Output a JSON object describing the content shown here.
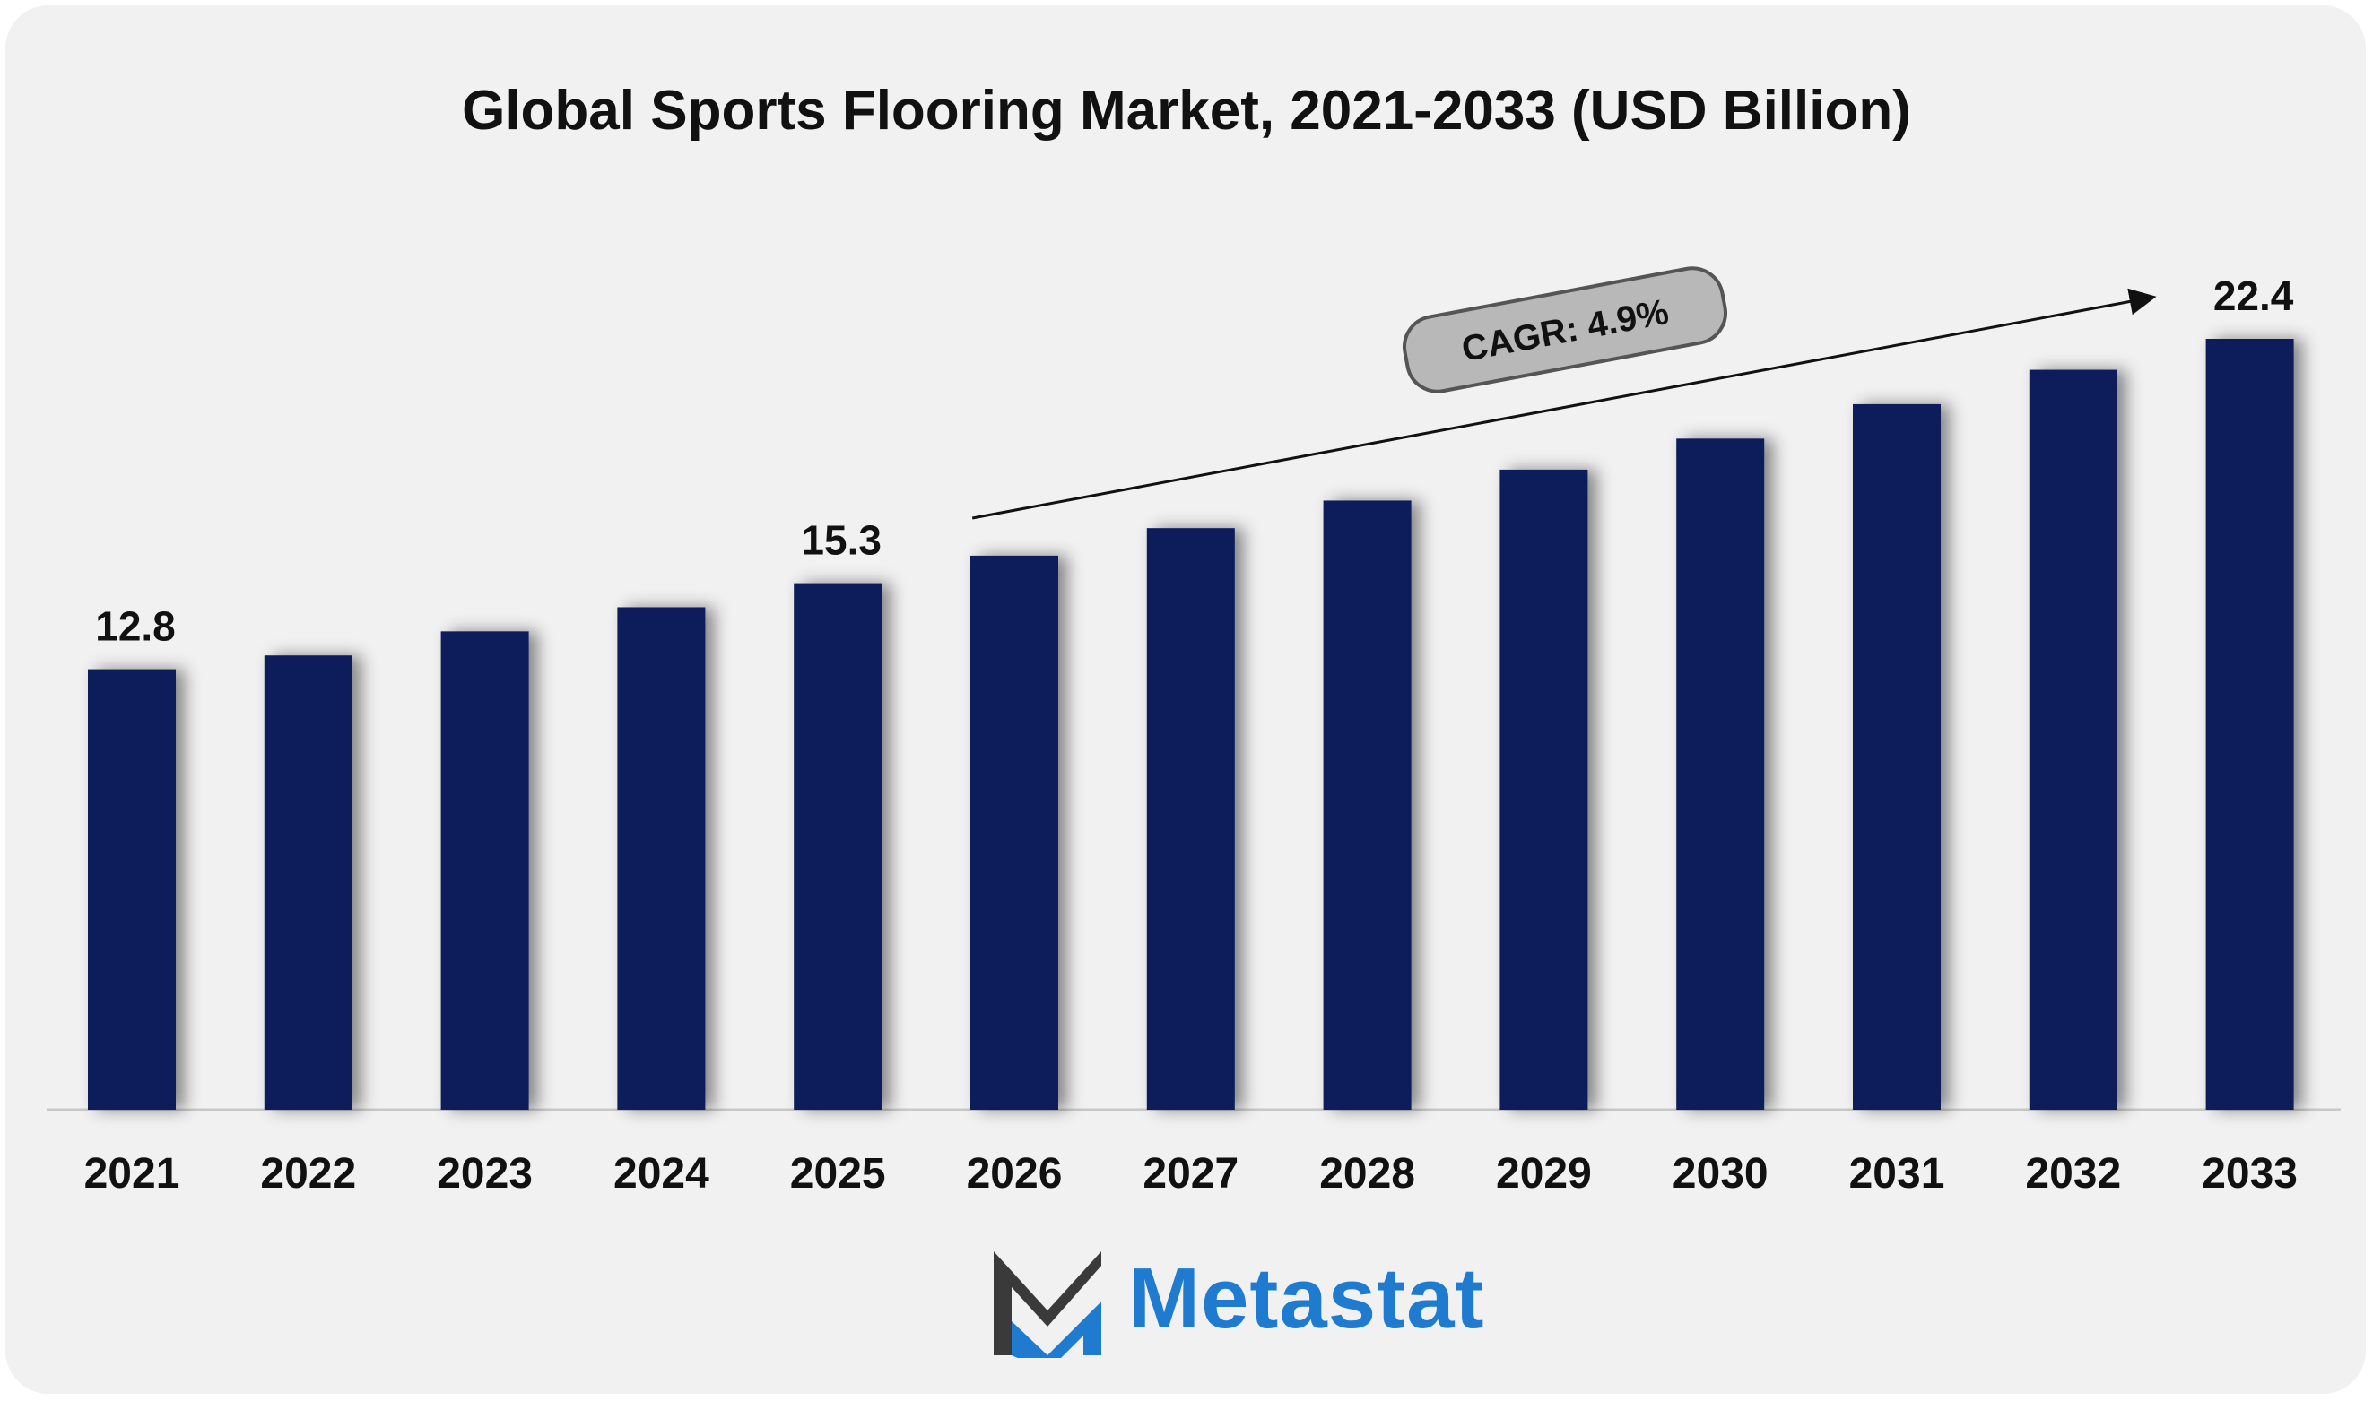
{
  "brand": {
    "name": "Metastat",
    "color": "#1e7bd0",
    "mark_dark": "#3a3a3a"
  },
  "chart_data": {
    "type": "bar",
    "title": "Global Sports Flooring Market, 2021-2033 (USD Billion)",
    "categories": [
      "2021",
      "2022",
      "2023",
      "2024",
      "2025",
      "2026",
      "2027",
      "2028",
      "2029",
      "2030",
      "2031",
      "2032",
      "2033"
    ],
    "values": [
      12.8,
      13.2,
      13.9,
      14.6,
      15.3,
      16.1,
      16.9,
      17.7,
      18.6,
      19.5,
      20.5,
      21.5,
      22.4
    ],
    "data_labels": [
      {
        "category": "2021",
        "label": "12.8"
      },
      {
        "category": "2025",
        "label": "15.3"
      },
      {
        "category": "2033",
        "label": "22.4"
      }
    ],
    "annotation": {
      "text": "CAGR: 4.9%",
      "from": "2025",
      "to": "2033"
    },
    "bar_color": "#0b1d5a",
    "xlabel": "",
    "ylabel": "",
    "ylim": [
      0,
      22.4
    ],
    "grid": false,
    "legend": "none"
  }
}
